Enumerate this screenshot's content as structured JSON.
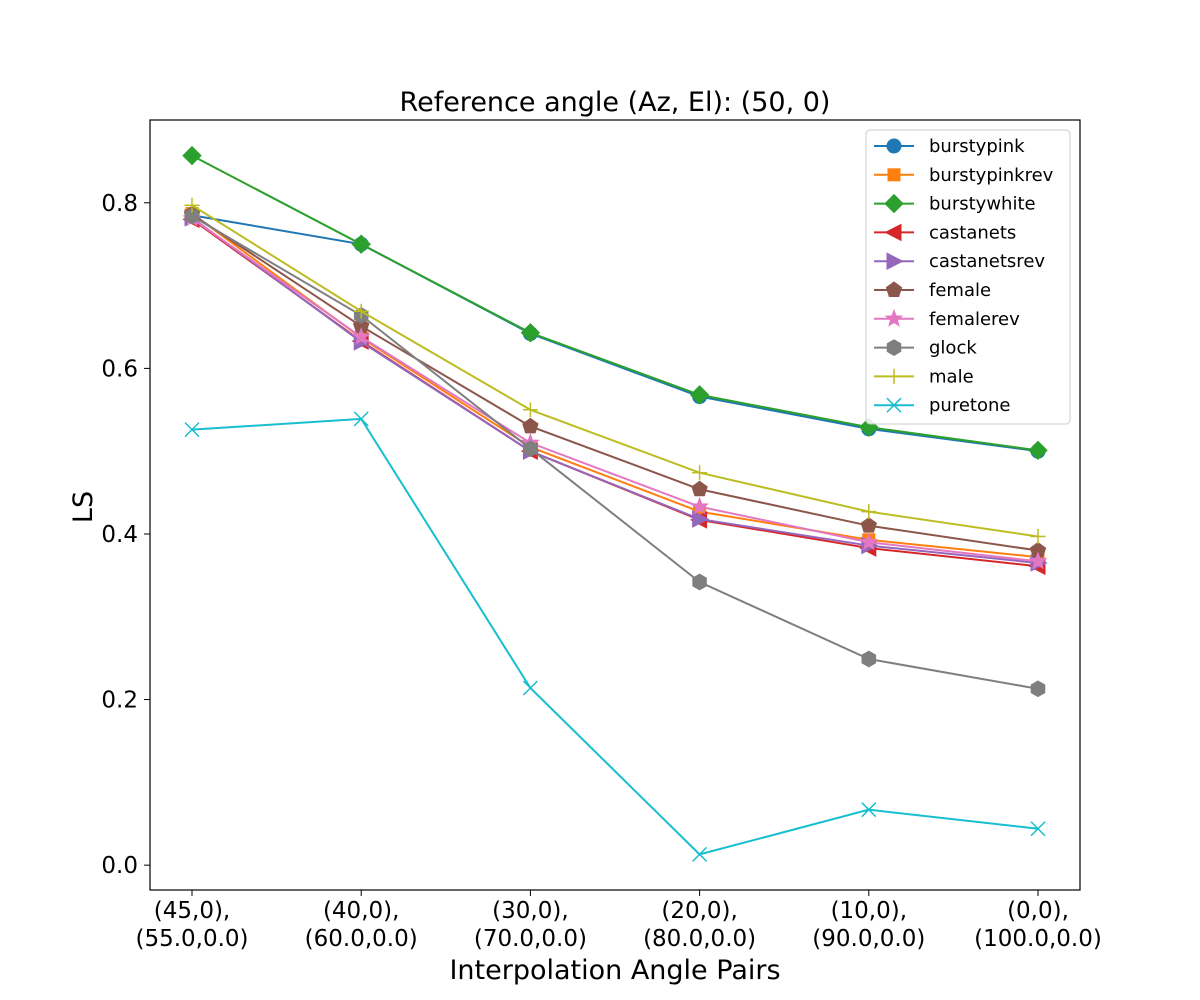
{
  "chart_data": {
    "type": "line",
    "title": "Reference angle (Az, El): (50, 0)",
    "xlabel": "Interpolation Angle Pairs",
    "ylabel": "LS",
    "categories": [
      [
        "(45,0),",
        "(55.0,0.0)"
      ],
      [
        "(40,0),",
        "(60.0,0.0)"
      ],
      [
        "(30,0),",
        "(70.0,0.0)"
      ],
      [
        "(20,0),",
        "(80.0,0.0)"
      ],
      [
        "(10,0),",
        "(90.0,0.0)"
      ],
      [
        "(0,0),",
        "(100.0,0.0)"
      ]
    ],
    "ylim": [
      -0.03,
      0.9
    ],
    "yticks": [
      "0.0",
      "0.2",
      "0.4",
      "0.6",
      "0.8"
    ],
    "ytick_values": [
      0.0,
      0.2,
      0.4,
      0.6,
      0.8
    ],
    "grid": false,
    "legend_position": "top-right",
    "series": [
      {
        "name": "burstypink",
        "color": "#1f77b4",
        "marker": "circle",
        "values": [
          0.785,
          0.75,
          0.642,
          0.566,
          0.527,
          0.5
        ]
      },
      {
        "name": "burstypinkrev",
        "color": "#ff7f0e",
        "marker": "square",
        "values": [
          0.787,
          0.637,
          0.505,
          0.427,
          0.393,
          0.372
        ]
      },
      {
        "name": "burstywhite",
        "color": "#2ca02c",
        "marker": "diamond",
        "values": [
          0.857,
          0.75,
          0.643,
          0.568,
          0.529,
          0.501
        ]
      },
      {
        "name": "castanets",
        "color": "#d62728",
        "marker": "triangle-left",
        "values": [
          0.78,
          0.633,
          0.5,
          0.417,
          0.383,
          0.361
        ]
      },
      {
        "name": "castanetsrev",
        "color": "#9467bd",
        "marker": "triangle-right",
        "values": [
          0.782,
          0.632,
          0.5,
          0.418,
          0.386,
          0.365
        ]
      },
      {
        "name": "female",
        "color": "#8c564b",
        "marker": "pentagon",
        "values": [
          0.786,
          0.651,
          0.53,
          0.454,
          0.41,
          0.38
        ]
      },
      {
        "name": "femalerev",
        "color": "#e377c2",
        "marker": "star",
        "values": [
          0.781,
          0.638,
          0.51,
          0.433,
          0.39,
          0.367
        ]
      },
      {
        "name": "glock",
        "color": "#7f7f7f",
        "marker": "hexagon",
        "values": [
          0.784,
          0.664,
          0.503,
          0.342,
          0.249,
          0.213
        ]
      },
      {
        "name": "male",
        "color": "#bcbd22",
        "marker": "plus",
        "values": [
          0.797,
          0.669,
          0.55,
          0.474,
          0.427,
          0.397
        ]
      },
      {
        "name": "puretone",
        "color": "#17becf",
        "marker": "x",
        "values": [
          0.526,
          0.539,
          0.214,
          0.013,
          0.067,
          0.044
        ]
      }
    ]
  }
}
